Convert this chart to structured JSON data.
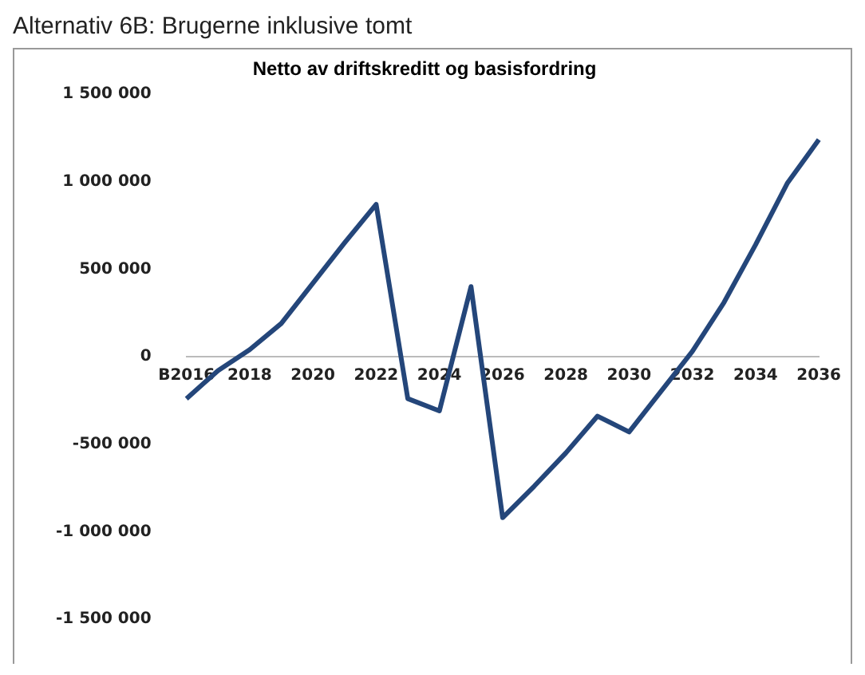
{
  "chart_data": {
    "type": "line",
    "title": "Netto av driftskreditt og basisfordring",
    "annotations": [
      "Alternativ 6B: Brugerne inklusive tomt"
    ],
    "categories": [
      "B2016",
      null,
      "2018",
      null,
      "2020",
      null,
      "2022",
      null,
      "2024",
      null,
      "2026",
      null,
      "2028",
      null,
      "2030",
      null,
      "2032",
      null,
      "2034",
      null,
      "2036"
    ],
    "series": [
      {
        "color": "#24467a",
        "values": [
          -240000,
          -80000,
          40000,
          190000,
          420000,
          650000,
          870000,
          -240000,
          -310000,
          400000,
          -920000,
          -740000,
          -550000,
          -340000,
          -430000,
          -200000,
          30000,
          310000,
          640000,
          990000,
          1240000
        ]
      }
    ],
    "ylim": [
      -1500000,
      1500000
    ],
    "yticks": [
      {
        "value": -1500000,
        "label": "-1 500 000"
      },
      {
        "value": -1000000,
        "label": "-1 000 000"
      },
      {
        "value": -500000,
        "label": "-500 000"
      },
      0,
      {
        "value": 500000,
        "label": "500 000"
      },
      {
        "value": 1000000,
        "label": "1 000 000"
      },
      {
        "value": 1500000,
        "label": "1 500 000"
      }
    ],
    "grid": false,
    "legend": false,
    "marker": "none",
    "line_style": "solid"
  }
}
